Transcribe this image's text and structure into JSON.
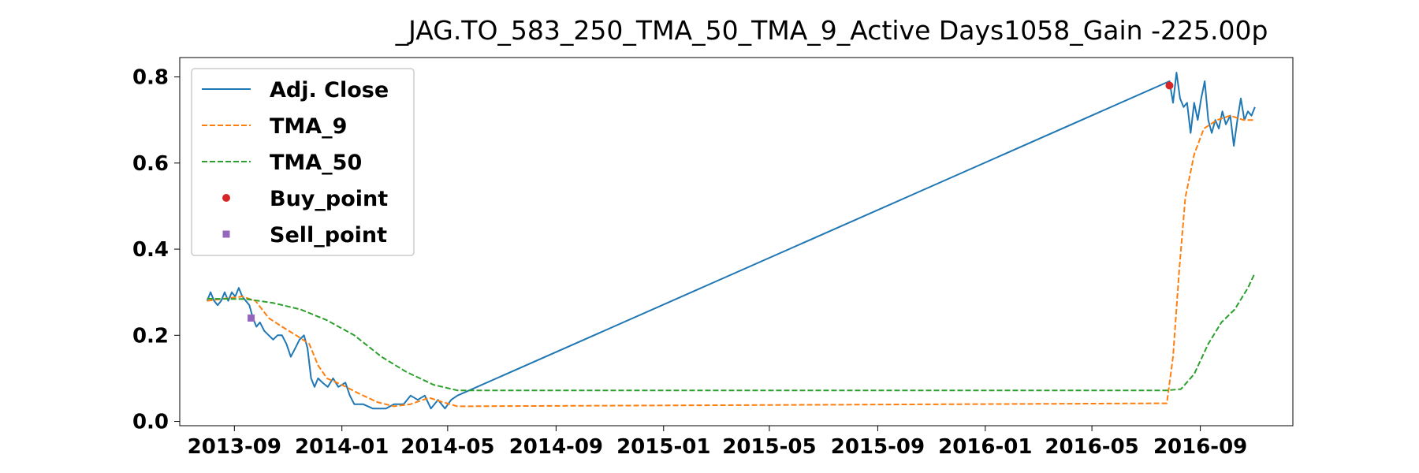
{
  "chart_data": {
    "type": "line",
    "title": "_JAG.TO_583_250_TMA_50_TMA_9_Active Days1058_Gain -225.00p",
    "xlabel": "",
    "ylabel": "",
    "xlim": [
      "2013-07-01",
      "2016-12-15"
    ],
    "ylim": [
      -0.01,
      0.845
    ],
    "grid": false,
    "legend_position": "top-left",
    "x_ticks": [
      "2013-09",
      "2014-01",
      "2014-05",
      "2014-09",
      "2015-01",
      "2015-05",
      "2015-09",
      "2016-01",
      "2016-05",
      "2016-09"
    ],
    "y_ticks": [
      0.0,
      0.2,
      0.4,
      0.6,
      0.8
    ],
    "y_tick_labels": [
      "0.0",
      "0.2",
      "0.4",
      "0.6",
      "0.8"
    ],
    "series": [
      {
        "name": "Adj. Close",
        "style": "solid",
        "color": "#1f77b4",
        "points": [
          [
            "2013-08-01",
            0.28
          ],
          [
            "2013-08-05",
            0.3
          ],
          [
            "2013-08-09",
            0.28
          ],
          [
            "2013-08-13",
            0.27
          ],
          [
            "2013-08-17",
            0.28
          ],
          [
            "2013-08-21",
            0.3
          ],
          [
            "2013-08-25",
            0.28
          ],
          [
            "2013-08-29",
            0.3
          ],
          [
            "2013-09-02",
            0.29
          ],
          [
            "2013-09-06",
            0.31
          ],
          [
            "2013-09-10",
            0.29
          ],
          [
            "2013-09-14",
            0.28
          ],
          [
            "2013-09-18",
            0.27
          ],
          [
            "2013-09-22",
            0.24
          ],
          [
            "2013-09-26",
            0.22
          ],
          [
            "2013-09-30",
            0.23
          ],
          [
            "2013-10-05",
            0.21
          ],
          [
            "2013-10-10",
            0.2
          ],
          [
            "2013-10-15",
            0.19
          ],
          [
            "2013-10-20",
            0.2
          ],
          [
            "2013-10-25",
            0.2
          ],
          [
            "2013-10-30",
            0.18
          ],
          [
            "2013-11-04",
            0.15
          ],
          [
            "2013-11-09",
            0.17
          ],
          [
            "2013-11-14",
            0.19
          ],
          [
            "2013-11-19",
            0.2
          ],
          [
            "2013-11-23",
            0.17
          ],
          [
            "2013-11-27",
            0.1
          ],
          [
            "2013-12-01",
            0.08
          ],
          [
            "2013-12-05",
            0.1
          ],
          [
            "2013-12-10",
            0.09
          ],
          [
            "2013-12-16",
            0.08
          ],
          [
            "2013-12-22",
            0.1
          ],
          [
            "2013-12-28",
            0.08
          ],
          [
            "2014-01-05",
            0.09
          ],
          [
            "2014-01-10",
            0.06
          ],
          [
            "2014-01-15",
            0.04
          ],
          [
            "2014-01-25",
            0.04
          ],
          [
            "2014-02-05",
            0.03
          ],
          [
            "2014-02-20",
            0.03
          ],
          [
            "2014-03-01",
            0.04
          ],
          [
            "2014-03-12",
            0.04
          ],
          [
            "2014-03-20",
            0.06
          ],
          [
            "2014-03-28",
            0.05
          ],
          [
            "2014-04-05",
            0.06
          ],
          [
            "2014-04-12",
            0.03
          ],
          [
            "2014-04-20",
            0.05
          ],
          [
            "2014-04-28",
            0.03
          ],
          [
            "2014-05-05",
            0.05
          ],
          [
            "2014-05-12",
            0.06
          ],
          [
            "2016-07-28",
            0.79
          ],
          [
            "2016-08-01",
            0.74
          ],
          [
            "2016-08-05",
            0.81
          ],
          [
            "2016-08-09",
            0.75
          ],
          [
            "2016-08-13",
            0.73
          ],
          [
            "2016-08-17",
            0.74
          ],
          [
            "2016-08-21",
            0.67
          ],
          [
            "2016-08-25",
            0.74
          ],
          [
            "2016-08-29",
            0.7
          ],
          [
            "2016-09-02",
            0.75
          ],
          [
            "2016-09-06",
            0.79
          ],
          [
            "2016-09-10",
            0.7
          ],
          [
            "2016-09-14",
            0.67
          ],
          [
            "2016-09-18",
            0.7
          ],
          [
            "2016-09-22",
            0.68
          ],
          [
            "2016-09-26",
            0.72
          ],
          [
            "2016-09-30",
            0.69
          ],
          [
            "2016-10-05",
            0.71
          ],
          [
            "2016-10-09",
            0.64
          ],
          [
            "2016-10-13",
            0.7
          ],
          [
            "2016-10-17",
            0.75
          ],
          [
            "2016-10-21",
            0.7
          ],
          [
            "2016-10-25",
            0.72
          ],
          [
            "2016-10-29",
            0.71
          ],
          [
            "2016-11-02",
            0.73
          ]
        ]
      },
      {
        "name": "TMA_9",
        "style": "dashed",
        "color": "#ff7f0e",
        "points": [
          [
            "2013-08-01",
            0.28
          ],
          [
            "2013-08-20",
            0.285
          ],
          [
            "2013-09-10",
            0.29
          ],
          [
            "2013-09-25",
            0.28
          ],
          [
            "2013-10-10",
            0.24
          ],
          [
            "2013-10-25",
            0.22
          ],
          [
            "2013-11-10",
            0.2
          ],
          [
            "2013-11-25",
            0.18
          ],
          [
            "2013-12-05",
            0.13
          ],
          [
            "2013-12-15",
            0.1
          ],
          [
            "2014-01-01",
            0.085
          ],
          [
            "2014-01-20",
            0.065
          ],
          [
            "2014-02-10",
            0.045
          ],
          [
            "2014-03-01",
            0.035
          ],
          [
            "2014-03-20",
            0.04
          ],
          [
            "2014-04-10",
            0.055
          ],
          [
            "2014-04-25",
            0.045
          ],
          [
            "2014-05-12",
            0.035
          ],
          [
            "2016-07-25",
            0.042
          ],
          [
            "2016-08-01",
            0.15
          ],
          [
            "2016-08-08",
            0.35
          ],
          [
            "2016-08-15",
            0.52
          ],
          [
            "2016-08-25",
            0.62
          ],
          [
            "2016-09-05",
            0.68
          ],
          [
            "2016-09-20",
            0.7
          ],
          [
            "2016-10-05",
            0.71
          ],
          [
            "2016-10-20",
            0.7
          ],
          [
            "2016-11-02",
            0.7
          ]
        ]
      },
      {
        "name": "TMA_50",
        "style": "dashed",
        "color": "#2ca02c",
        "points": [
          [
            "2013-08-01",
            0.285
          ],
          [
            "2013-09-15",
            0.284
          ],
          [
            "2013-10-15",
            0.275
          ],
          [
            "2013-11-15",
            0.26
          ],
          [
            "2013-12-15",
            0.235
          ],
          [
            "2014-01-15",
            0.2
          ],
          [
            "2014-02-15",
            0.15
          ],
          [
            "2014-03-15",
            0.115
          ],
          [
            "2014-04-15",
            0.085
          ],
          [
            "2014-05-12",
            0.072
          ],
          [
            "2016-07-25",
            0.072
          ],
          [
            "2016-08-10",
            0.075
          ],
          [
            "2016-08-25",
            0.11
          ],
          [
            "2016-09-10",
            0.18
          ],
          [
            "2016-09-25",
            0.23
          ],
          [
            "2016-10-10",
            0.26
          ],
          [
            "2016-10-25",
            0.31
          ],
          [
            "2016-11-02",
            0.345
          ]
        ]
      },
      {
        "name": "Buy_point",
        "style": "marker",
        "marker": "circle",
        "color": "#d62728",
        "points": [
          [
            "2016-07-28",
            0.78
          ]
        ]
      },
      {
        "name": "Sell_point",
        "style": "marker",
        "marker": "square",
        "color": "#9467bd",
        "points": [
          [
            "2013-09-20",
            0.24
          ]
        ]
      }
    ]
  }
}
